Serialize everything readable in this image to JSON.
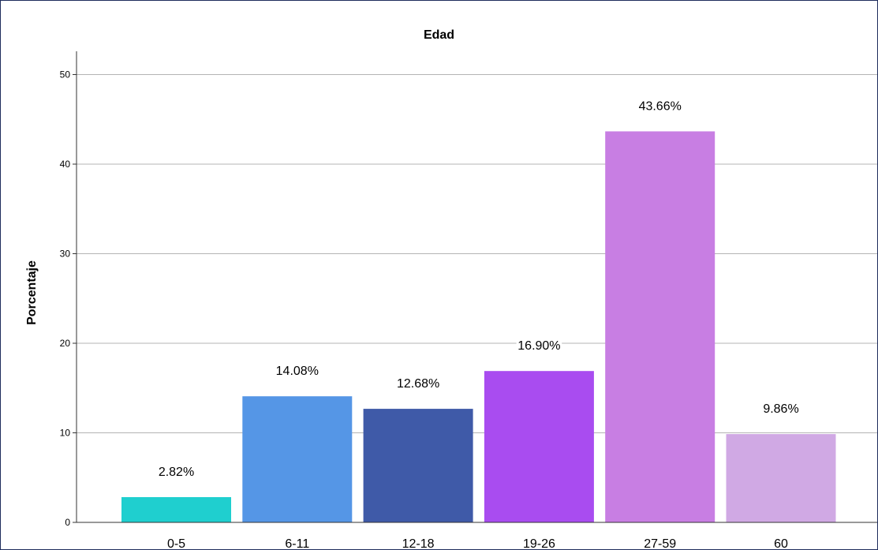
{
  "chart_data": {
    "type": "bar",
    "title": "Edad",
    "xlabel": "",
    "ylabel": "Porcentaje",
    "categories": [
      "0-5",
      "6-11",
      "12-18",
      "19-26",
      "27-59",
      "60"
    ],
    "values": [
      2.82,
      14.08,
      12.68,
      16.9,
      43.66,
      9.86
    ],
    "data_labels": [
      "2.82%",
      "14.08%",
      "12.68%",
      "16.90%",
      "43.66%",
      "9.86%"
    ],
    "colors": [
      "#1fcfcf",
      "#5596e6",
      "#3f5aa8",
      "#a94cf0",
      "#c87ee3",
      "#d0a9e4"
    ],
    "ylim": [
      0,
      52
    ],
    "yticks": [
      0,
      10,
      20,
      30,
      40,
      50
    ],
    "grid": true,
    "legend": "none"
  }
}
